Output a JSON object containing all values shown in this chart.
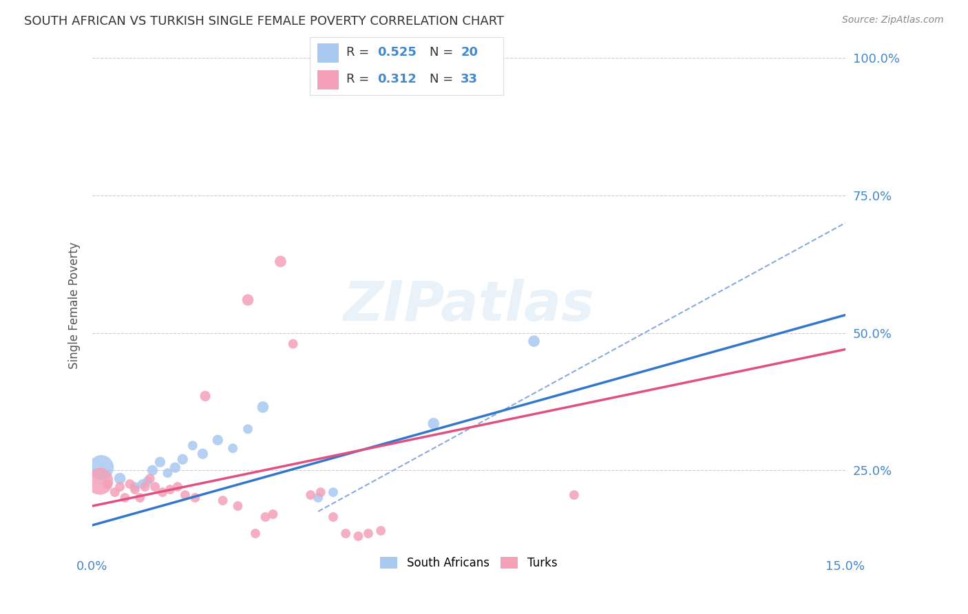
{
  "title": "SOUTH AFRICAN VS TURKISH SINGLE FEMALE POVERTY CORRELATION CHART",
  "source": "Source: ZipAtlas.com",
  "ylabel_label": "Single Female Poverty",
  "x_min": 0.0,
  "x_max": 15.0,
  "y_min": 10.0,
  "y_max": 100.0,
  "x_ticks": [
    0.0,
    15.0
  ],
  "x_tick_labels": [
    "0.0%",
    "15.0%"
  ],
  "y_ticks": [
    25.0,
    50.0,
    75.0,
    100.0
  ],
  "y_tick_labels": [
    "25.0%",
    "50.0%",
    "75.0%",
    "100.0%"
  ],
  "grid_color": "#cccccc",
  "background_color": "#ffffff",
  "watermark_text": "ZIPatlas",
  "legend_label1": "South Africans",
  "legend_label2": "Turks",
  "sa_color": "#a8c8f0",
  "turk_color": "#f4a0b8",
  "sa_line_color": "#3377cc",
  "turk_line_color": "#e05080",
  "dashed_line_color": "#88aadd",
  "title_color": "#333333",
  "accent_color": "#4488cc",
  "sa_points": [
    [
      0.18,
      25.5,
      26
    ],
    [
      0.55,
      23.5,
      12
    ],
    [
      0.85,
      22.0,
      10
    ],
    [
      1.0,
      22.5,
      10
    ],
    [
      1.1,
      23.0,
      10
    ],
    [
      1.2,
      25.0,
      11
    ],
    [
      1.35,
      26.5,
      11
    ],
    [
      1.5,
      24.5,
      10
    ],
    [
      1.65,
      25.5,
      11
    ],
    [
      1.8,
      27.0,
      11
    ],
    [
      2.0,
      29.5,
      10
    ],
    [
      2.2,
      28.0,
      11
    ],
    [
      2.5,
      30.5,
      11
    ],
    [
      2.8,
      29.0,
      10
    ],
    [
      3.1,
      32.5,
      10
    ],
    [
      3.4,
      36.5,
      12
    ],
    [
      4.5,
      20.0,
      10
    ],
    [
      4.8,
      21.0,
      10
    ],
    [
      6.8,
      33.5,
      12
    ],
    [
      8.8,
      48.5,
      12
    ]
  ],
  "turk_points": [
    [
      0.15,
      23.0,
      28
    ],
    [
      0.3,
      22.5,
      10
    ],
    [
      0.45,
      21.0,
      10
    ],
    [
      0.55,
      22.0,
      10
    ],
    [
      0.65,
      20.0,
      10
    ],
    [
      0.75,
      22.5,
      10
    ],
    [
      0.85,
      21.5,
      10
    ],
    [
      0.95,
      20.0,
      10
    ],
    [
      1.05,
      22.0,
      10
    ],
    [
      1.15,
      23.5,
      10
    ],
    [
      1.25,
      22.0,
      10
    ],
    [
      1.4,
      21.0,
      10
    ],
    [
      1.55,
      21.5,
      10
    ],
    [
      1.7,
      22.0,
      10
    ],
    [
      1.85,
      20.5,
      10
    ],
    [
      2.05,
      20.0,
      10
    ],
    [
      2.25,
      38.5,
      11
    ],
    [
      2.6,
      19.5,
      10
    ],
    [
      2.9,
      18.5,
      10
    ],
    [
      3.1,
      56.0,
      12
    ],
    [
      3.25,
      13.5,
      10
    ],
    [
      3.45,
      16.5,
      10
    ],
    [
      3.6,
      17.0,
      10
    ],
    [
      3.75,
      63.0,
      12
    ],
    [
      4.0,
      48.0,
      10
    ],
    [
      4.35,
      20.5,
      10
    ],
    [
      4.55,
      21.0,
      10
    ],
    [
      4.8,
      16.5,
      10
    ],
    [
      5.05,
      13.5,
      10
    ],
    [
      5.3,
      13.0,
      10
    ],
    [
      5.5,
      13.5,
      10
    ],
    [
      5.75,
      14.0,
      10
    ],
    [
      9.6,
      20.5,
      10
    ]
  ],
  "sa_slope": 2.55,
  "sa_intercept": 15.0,
  "turk_slope": 1.9,
  "turk_intercept": 18.5,
  "dashed_x_start": 4.5,
  "dashed_slope": 5.0,
  "dashed_intercept": -5.0
}
